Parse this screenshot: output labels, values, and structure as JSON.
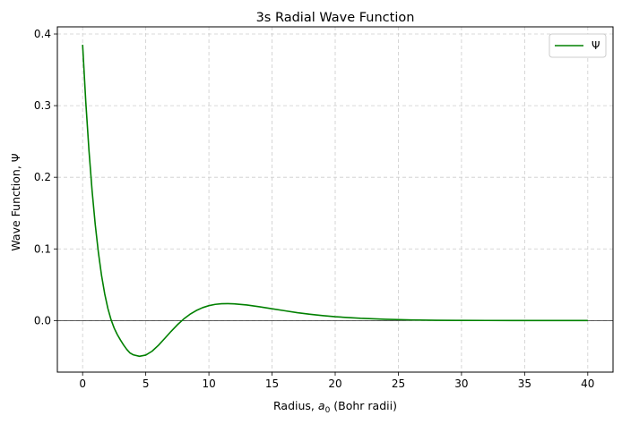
{
  "chart_data": {
    "type": "line",
    "title": "3s Radial Wave Function",
    "xlabel_prefix": "Radius, ",
    "xlabel_symbol": "a",
    "xlabel_subscript": "0",
    "xlabel_suffix": " (Bohr radii)",
    "ylabel": "Wave Function, Ψ",
    "xlim": [
      -2,
      42
    ],
    "ylim": [
      -0.072,
      0.41
    ],
    "xticks": [
      0,
      5,
      10,
      15,
      20,
      25,
      30,
      35,
      40
    ],
    "xtick_labels": [
      "0",
      "5",
      "10",
      "15",
      "20",
      "25",
      "30",
      "35",
      "40"
    ],
    "yticks": [
      0.0,
      0.1,
      0.2,
      0.3,
      0.4
    ],
    "ytick_labels": [
      "0.0",
      "0.1",
      "0.2",
      "0.3",
      "0.4"
    ],
    "grid": true,
    "legend_position": "top-right",
    "series": [
      {
        "name": "Ψ",
        "color": "#008000",
        "x": [
          0,
          0.25,
          0.5,
          0.75,
          1,
          1.25,
          1.5,
          1.75,
          2,
          2.25,
          2.5,
          2.75,
          3,
          3.25,
          3.5,
          3.75,
          4,
          4.5,
          5,
          5.5,
          6,
          6.5,
          7,
          7.5,
          8,
          8.5,
          9,
          9.5,
          10,
          10.5,
          11,
          11.5,
          12,
          13,
          14,
          15,
          16,
          17,
          18,
          19,
          20,
          22,
          24,
          26,
          28,
          30,
          32,
          34,
          36,
          38,
          40
        ],
        "y": [
          0.3849,
          0.3055,
          0.2381,
          0.1813,
          0.1339,
          0.0948,
          0.0628,
          0.0372,
          0.0169,
          0.0013,
          -0.0106,
          -0.0197,
          -0.0273,
          -0.0343,
          -0.0404,
          -0.0452,
          -0.0478,
          -0.0499,
          -0.0482,
          -0.0428,
          -0.0346,
          -0.025,
          -0.0152,
          -0.006,
          0.0021,
          0.0087,
          0.014,
          0.018,
          0.0208,
          0.0226,
          0.0234,
          0.0236,
          0.0233,
          0.0217,
          0.0192,
          0.0164,
          0.0137,
          0.011,
          0.0088,
          0.0069,
          0.0053,
          0.0031,
          0.0017,
          0.0009,
          0.0004,
          0.0002,
          0.0001,
          5e-05,
          2e-05,
          1e-05,
          0.0
        ]
      }
    ]
  }
}
